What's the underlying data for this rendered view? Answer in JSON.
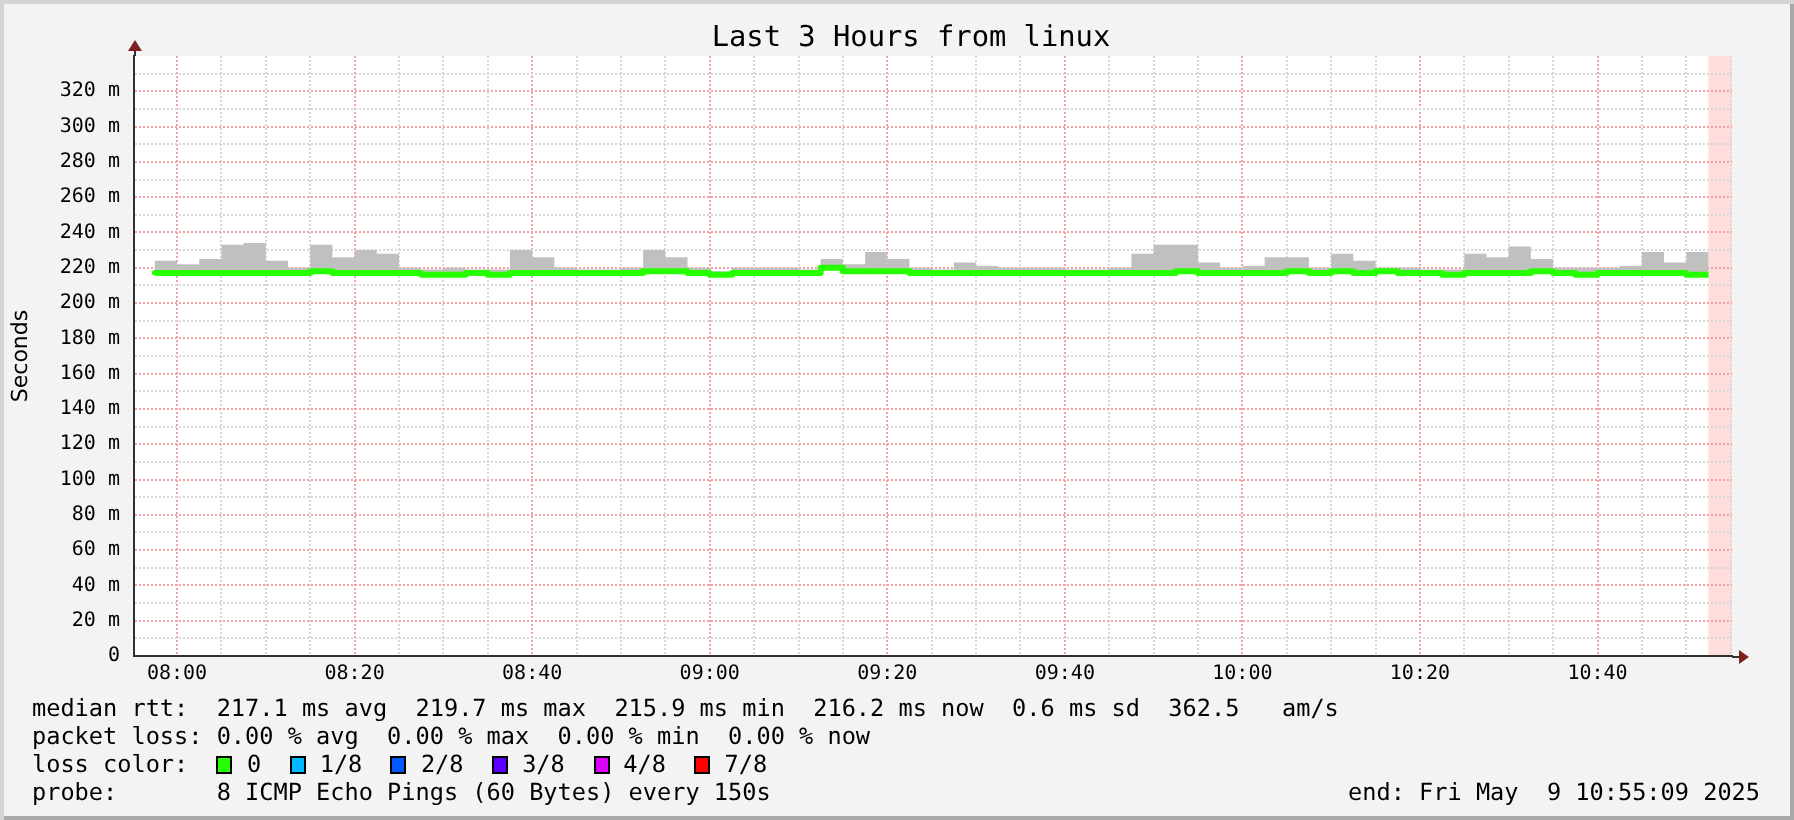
{
  "chart_data": {
    "type": "step",
    "title": "Last 3 Hours from linux",
    "ylabel": "Seconds",
    "legend_title": "loss color:",
    "legend": "bottom",
    "grid": true,
    "xlim": [
      7.9192,
      10.9192
    ],
    "ylim": [
      0,
      340
    ],
    "xticks": [
      {
        "value": 8,
        "label": "08:00"
      },
      {
        "value": 8.0833,
        "label": null
      },
      {
        "value": 8.1667,
        "label": null
      },
      {
        "value": 8.25,
        "label": null
      },
      {
        "value": 8.3333,
        "label": "08:20"
      },
      {
        "value": 8.4167,
        "label": null
      },
      {
        "value": 8.5,
        "label": null
      },
      {
        "value": 8.5833,
        "label": null
      },
      {
        "value": 8.6667,
        "label": "08:40"
      },
      {
        "value": 8.75,
        "label": null
      },
      {
        "value": 8.8333,
        "label": null
      },
      {
        "value": 8.9167,
        "label": null
      },
      {
        "value": 9,
        "label": "09:00"
      },
      {
        "value": 9.0833,
        "label": null
      },
      {
        "value": 9.1667,
        "label": null
      },
      {
        "value": 9.25,
        "label": null
      },
      {
        "value": 9.3333,
        "label": "09:20"
      },
      {
        "value": 9.4167,
        "label": null
      },
      {
        "value": 9.5,
        "label": null
      },
      {
        "value": 9.5833,
        "label": null
      },
      {
        "value": 9.6667,
        "label": "09:40"
      },
      {
        "value": 9.75,
        "label": null
      },
      {
        "value": 9.8333,
        "label": null
      },
      {
        "value": 9.9167,
        "label": null
      },
      {
        "value": 10,
        "label": "10:00"
      },
      {
        "value": 10.0833,
        "label": null
      },
      {
        "value": 10.1667,
        "label": null
      },
      {
        "value": 10.25,
        "label": null
      },
      {
        "value": 10.3333,
        "label": "10:20"
      },
      {
        "value": 10.4167,
        "label": null
      },
      {
        "value": 10.5,
        "label": null
      },
      {
        "value": 10.5833,
        "label": null
      },
      {
        "value": 10.6667,
        "label": "10:40"
      },
      {
        "value": 10.75,
        "label": null
      },
      {
        "value": 10.8333,
        "label": null
      },
      {
        "value": 10.9167,
        "label": null
      }
    ],
    "yticks": [
      0,
      {
        "value": 10,
        "label": null
      },
      {
        "value": 20,
        "label": "20 m"
      },
      {
        "value": 30,
        "label": null
      },
      {
        "value": 40,
        "label": "40 m"
      },
      {
        "value": 50,
        "label": null
      },
      {
        "value": 60,
        "label": "60 m"
      },
      {
        "value": 70,
        "label": null
      },
      {
        "value": 80,
        "label": "80 m"
      },
      {
        "value": 90,
        "label": null
      },
      {
        "value": 100,
        "label": "100 m"
      },
      {
        "value": 110,
        "label": null
      },
      {
        "value": 120,
        "label": "120 m"
      },
      {
        "value": 130,
        "label": null
      },
      {
        "value": 140,
        "label": "140 m"
      },
      {
        "value": 150,
        "label": null
      },
      {
        "value": 160,
        "label": "160 m"
      },
      {
        "value": 170,
        "label": null
      },
      {
        "value": 180,
        "label": "180 m"
      },
      {
        "value": 190,
        "label": null
      },
      {
        "value": 200,
        "label": "200 m"
      },
      {
        "value": 210,
        "label": null
      },
      {
        "value": 220,
        "label": "220 m"
      },
      {
        "value": 230,
        "label": null
      },
      {
        "value": 240,
        "label": "240 m"
      },
      {
        "value": 250,
        "label": null
      },
      {
        "value": 260,
        "label": "260 m"
      },
      {
        "value": 270,
        "label": null
      },
      {
        "value": 280,
        "label": "280 m"
      },
      {
        "value": 290,
        "label": null
      },
      {
        "value": 300,
        "label": "300 m"
      },
      {
        "value": 310,
        "label": null
      },
      {
        "value": 320,
        "label": "320 m"
      },
      {
        "value": 330,
        "label": null
      }
    ],
    "x": [
      7.9583,
      8.0,
      8.0417,
      8.0833,
      8.125,
      8.1667,
      8.2083,
      8.25,
      8.2917,
      8.3333,
      8.375,
      8.4167,
      8.4583,
      8.5,
      8.5417,
      8.5833,
      8.625,
      8.6667,
      8.7083,
      8.75,
      8.7917,
      8.8333,
      8.875,
      8.9167,
      8.9583,
      9.0,
      9.0417,
      9.0833,
      9.125,
      9.1667,
      9.2083,
      9.25,
      9.2917,
      9.3333,
      9.375,
      9.4167,
      9.4583,
      9.5,
      9.5417,
      9.5833,
      9.625,
      9.6667,
      9.7083,
      9.75,
      9.7917,
      9.8333,
      9.875,
      9.9167,
      9.9583,
      10.0,
      10.0417,
      10.0833,
      10.125,
      10.1667,
      10.2083,
      10.25,
      10.2917,
      10.3333,
      10.375,
      10.4167,
      10.4583,
      10.5,
      10.5417,
      10.5833,
      10.625,
      10.6667,
      10.7083,
      10.75,
      10.7917,
      10.8333,
      10.875
    ],
    "series": [
      {
        "name": "0",
        "color": "#26ff00",
        "values": [
          216,
          217,
          217,
          217,
          217,
          217,
          217,
          217,
          218,
          217,
          217,
          217,
          217,
          216,
          216,
          217,
          216,
          217,
          217,
          217,
          217,
          217,
          217,
          218,
          218,
          217,
          216,
          217,
          217,
          217,
          217,
          220,
          218,
          218,
          218,
          217,
          217,
          217,
          217,
          217,
          217,
          217,
          217,
          217,
          217,
          217,
          217,
          218,
          217,
          217,
          217,
          217,
          218,
          217,
          218,
          217,
          218,
          217,
          217,
          216,
          217,
          217,
          217,
          218,
          217,
          216,
          217,
          217,
          217,
          217,
          216
        ],
        "lower": [
          215,
          216,
          216,
          216,
          216,
          216,
          216,
          216,
          217,
          216,
          216,
          216,
          216,
          215,
          215,
          216,
          215,
          216,
          216,
          216,
          216,
          216,
          216,
          217,
          217,
          216,
          215,
          216,
          216,
          216,
          216,
          219,
          217,
          217,
          217,
          216,
          216,
          216,
          216,
          216,
          216,
          216,
          216,
          216,
          216,
          216,
          216,
          217,
          216,
          216,
          216,
          216,
          217,
          216,
          217,
          216,
          217,
          216,
          216,
          215,
          216,
          216,
          216,
          217,
          216,
          215,
          216,
          216,
          216,
          216,
          215
        ],
        "upper": [
          221,
          224,
          222,
          225,
          233,
          234,
          224,
          220,
          233,
          226,
          230,
          228,
          220,
          219,
          220,
          219,
          219,
          230,
          226,
          220,
          219,
          219,
          220,
          230,
          226,
          220,
          218,
          220,
          220,
          220,
          219,
          225,
          222,
          229,
          225,
          220,
          219,
          223,
          221,
          220,
          220,
          220,
          219,
          219,
          220,
          228,
          233,
          233,
          223,
          220,
          221,
          226,
          226,
          220,
          228,
          224,
          220,
          220,
          219,
          219,
          228,
          226,
          232,
          225,
          220,
          220,
          220,
          221,
          229,
          223,
          229
        ]
      },
      {
        "name": "1/8",
        "color": "#00b8ff",
        "values": [
          null,
          null,
          null,
          null,
          null,
          null,
          null,
          null,
          null,
          null,
          null,
          null,
          null,
          null,
          null,
          null,
          null,
          null,
          null,
          null,
          null,
          null,
          null,
          null,
          null,
          null,
          null,
          null,
          null,
          null,
          null,
          null,
          null,
          null,
          null,
          null,
          null,
          null,
          null,
          null,
          null,
          null,
          null,
          null,
          null,
          null,
          null,
          null,
          null,
          null,
          null,
          null,
          null,
          null,
          null,
          null,
          null,
          null,
          null,
          null,
          null,
          null,
          null,
          null,
          null,
          null,
          null,
          null,
          null,
          null,
          null
        ]
      },
      {
        "name": "2/8",
        "color": "#0059ff",
        "values": [
          null,
          null,
          null,
          null,
          null,
          null,
          null,
          null,
          null,
          null,
          null,
          null,
          null,
          null,
          null,
          null,
          null,
          null,
          null,
          null,
          null,
          null,
          null,
          null,
          null,
          null,
          null,
          null,
          null,
          null,
          null,
          null,
          null,
          null,
          null,
          null,
          null,
          null,
          null,
          null,
          null,
          null,
          null,
          null,
          null,
          null,
          null,
          null,
          null,
          null,
          null,
          null,
          null,
          null,
          null,
          null,
          null,
          null,
          null,
          null,
          null,
          null,
          null,
          null,
          null,
          null,
          null,
          null,
          null,
          null,
          null
        ]
      },
      {
        "name": "3/8",
        "color": "#5e00ff",
        "values": [
          null,
          null,
          null,
          null,
          null,
          null,
          null,
          null,
          null,
          null,
          null,
          null,
          null,
          null,
          null,
          null,
          null,
          null,
          null,
          null,
          null,
          null,
          null,
          null,
          null,
          null,
          null,
          null,
          null,
          null,
          null,
          null,
          null,
          null,
          null,
          null,
          null,
          null,
          null,
          null,
          null,
          null,
          null,
          null,
          null,
          null,
          null,
          null,
          null,
          null,
          null,
          null,
          null,
          null,
          null,
          null,
          null,
          null,
          null,
          null,
          null,
          null,
          null,
          null,
          null,
          null,
          null,
          null,
          null,
          null,
          null
        ]
      },
      {
        "name": "4/8",
        "color": "#dd00ff",
        "values": [
          null,
          null,
          null,
          null,
          null,
          null,
          null,
          null,
          null,
          null,
          null,
          null,
          null,
          null,
          null,
          null,
          null,
          null,
          null,
          null,
          null,
          null,
          null,
          null,
          null,
          null,
          null,
          null,
          null,
          null,
          null,
          null,
          null,
          null,
          null,
          null,
          null,
          null,
          null,
          null,
          null,
          null,
          null,
          null,
          null,
          null,
          null,
          null,
          null,
          null,
          null,
          null,
          null,
          null,
          null,
          null,
          null,
          null,
          null,
          null,
          null,
          null,
          null,
          null,
          null,
          null,
          null,
          null,
          null,
          null,
          null
        ]
      },
      {
        "name": "7/8",
        "color": "#ff0000",
        "values": [
          null,
          null,
          null,
          null,
          null,
          null,
          null,
          null,
          null,
          null,
          null,
          null,
          null,
          null,
          null,
          null,
          null,
          null,
          null,
          null,
          null,
          null,
          null,
          null,
          null,
          null,
          null,
          null,
          null,
          null,
          null,
          null,
          null,
          null,
          null,
          null,
          null,
          null,
          null,
          null,
          null,
          null,
          null,
          null,
          null,
          null,
          null,
          null,
          null,
          null,
          null,
          null,
          null,
          null,
          null,
          null,
          null,
          null,
          null,
          null,
          null,
          null,
          null,
          null,
          null,
          null,
          null,
          null,
          null,
          null,
          null
        ]
      }
    ],
    "bands": [
      {
        "axis": "x",
        "from": 10.875,
        "to": 10.9192,
        "color": "#ffdddd"
      }
    ],
    "annotations": [
      "median rtt:  217.1 ms avg  219.7 ms max  215.9 ms min  216.2 ms now  0.6 ms sd  362.5   am/s",
      "packet loss: 0.00 % avg  0.00 % max  0.00 % min  0.00 % now",
      "probe:       8 ICMP Echo Pings (60 Bytes) every 150s",
      "end: Fri May  9 10:55:09 2025"
    ]
  }
}
